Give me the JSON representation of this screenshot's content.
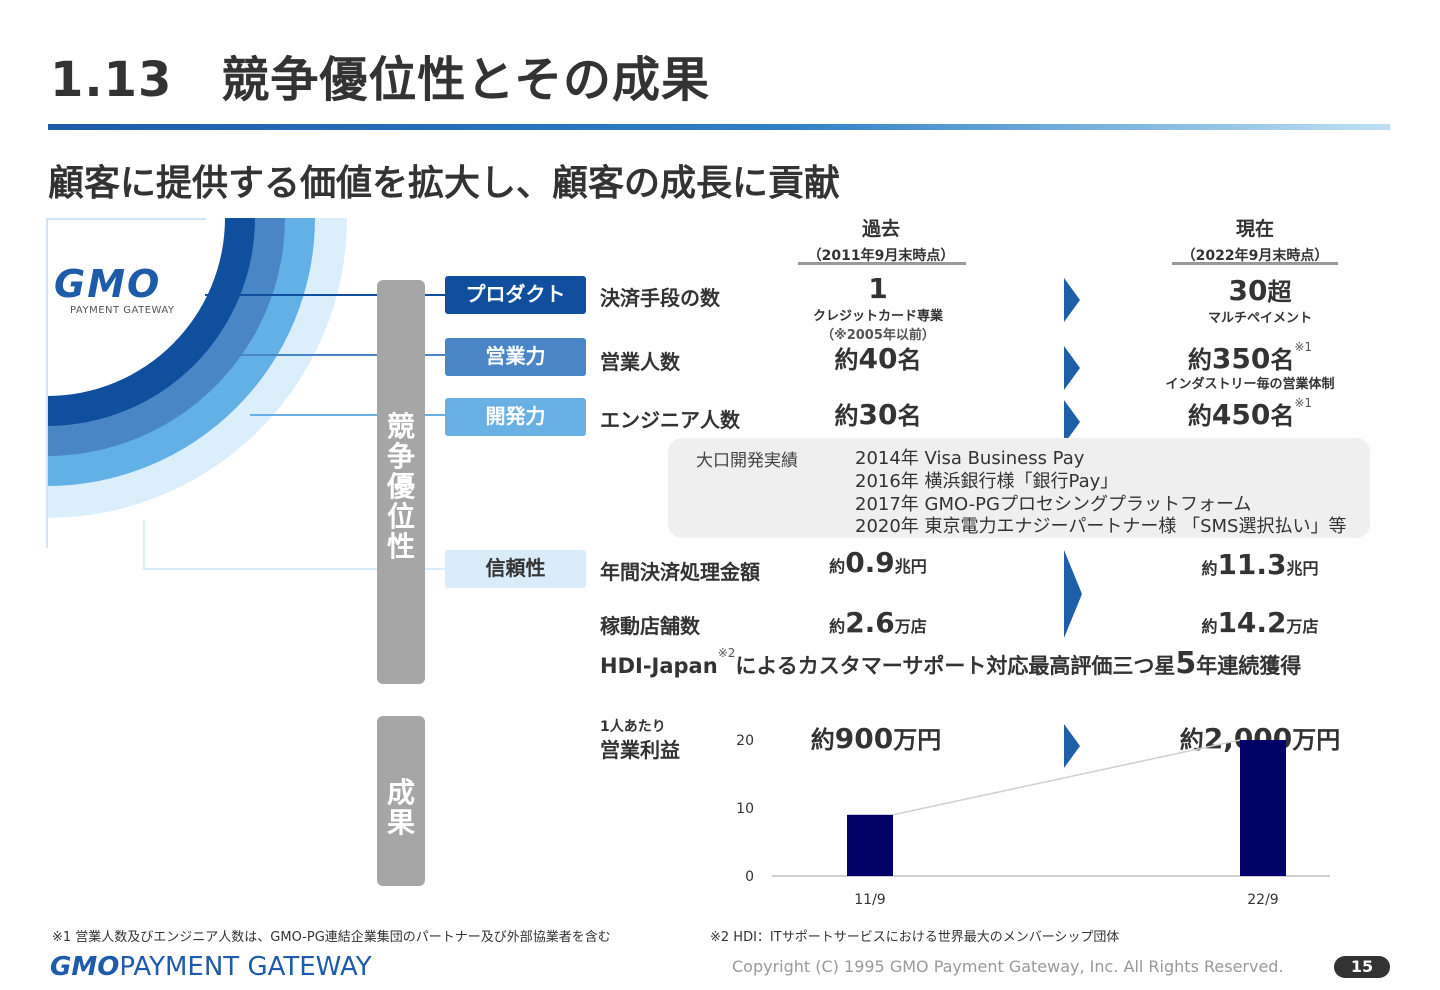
{
  "header": {
    "title": "1.13　競争優位性とその成果",
    "subtitle": "顧客に提供する価値を拡大し、顧客の成長に貢献"
  },
  "logo": {
    "brand": "GMO",
    "tagline": "PAYMENT GATEWAY"
  },
  "sections": {
    "advantage": "競争優位性",
    "results": "成果"
  },
  "columns": {
    "past": {
      "heading": "過去",
      "date": "（2011年9月末時点）"
    },
    "present": {
      "heading": "現在",
      "date": "（2022年9月末時点）"
    }
  },
  "rows": {
    "product": {
      "tag": "プロダクト",
      "label": "決済手段の数",
      "past_value": "1",
      "past_note": "クレジットカード専業",
      "past_note2": "（※2005年以前）",
      "present_value": "30",
      "present_unit": "超",
      "present_note": "マルチペイメント"
    },
    "sales": {
      "tag": "営業力",
      "label": "営業人数",
      "past_prefix": "約",
      "past_value": "40",
      "past_unit": "名",
      "present_prefix": "約",
      "present_value": "350",
      "present_unit": "名",
      "present_sup": "※1",
      "present_note": "インダストリー毎の営業体制"
    },
    "dev": {
      "tag": "開発力",
      "label": "エンジニア人数",
      "past_prefix": "約",
      "past_value": "30",
      "past_unit": "名",
      "present_prefix": "約",
      "present_value": "450",
      "present_unit": "名",
      "present_sup": "※1"
    },
    "dev_record": {
      "label": "大口開発実績",
      "items": [
        "2014年 Visa Business Pay",
        "2016年 横浜銀行様「銀行Pay」",
        "2017年 GMO-PGプロセシングプラットフォーム",
        "2020年 東京電力エナジーパートナー様 「SMS選択払い」等"
      ]
    },
    "reliability": {
      "tag": "信頼性",
      "label": "年間決済処理金額",
      "past_prefix": "約",
      "past_value": "0.9",
      "past_unit": "兆円",
      "present_prefix": "約",
      "present_value": "11.3",
      "present_unit": "兆円"
    },
    "stores": {
      "label": "稼動店舗数",
      "past_prefix": "約",
      "past_value": "2.6",
      "past_unit": "万店",
      "present_prefix": "約",
      "present_value": "14.2",
      "present_unit": "万店"
    },
    "hdi": {
      "prefix": "HDI-Japan",
      "sup": "※2",
      "text": "によるカスタマーサポート対応最高評価三つ星",
      "number": "5",
      "suffix": "年連続獲得"
    }
  },
  "profit": {
    "label_small": "1人あたり",
    "label": "営業利益",
    "past_prefix": "約",
    "past_value": "900",
    "past_unit": "万円",
    "present_prefix": "約",
    "present_value": "2,000",
    "present_unit": "万円"
  },
  "chart_data": {
    "type": "bar",
    "categories": [
      "11/9",
      "22/9"
    ],
    "values": [
      9,
      20
    ],
    "title": "",
    "xlabel": "",
    "ylabel": "",
    "ylim": [
      0,
      20
    ],
    "yticks": [
      "0",
      "10",
      "20"
    ],
    "bar_color": "#000066",
    "connector_line": true
  },
  "colors": {
    "tag_product": "#0f4f9e",
    "tag_sales": "#4a86c6",
    "tag_dev": "#69b1e4",
    "tag_reliability": "#d9ecfa",
    "accent": "#1f5ea8"
  },
  "footer": {
    "note1": "※1 営業人数及びエンジニア人数は、GMO-PG連結企業集団のパートナー及び外部協業者を含む",
    "note2": "※2 HDI：ITサポートサービスにおける世界最大のメンバーシップ団体",
    "logo_brand": "GMO",
    "logo_text": "PAYMENT GATEWAY",
    "copyright": "Copyright (C) 1995 GMO Payment Gateway, Inc. All Rights Reserved.",
    "page": "15"
  }
}
